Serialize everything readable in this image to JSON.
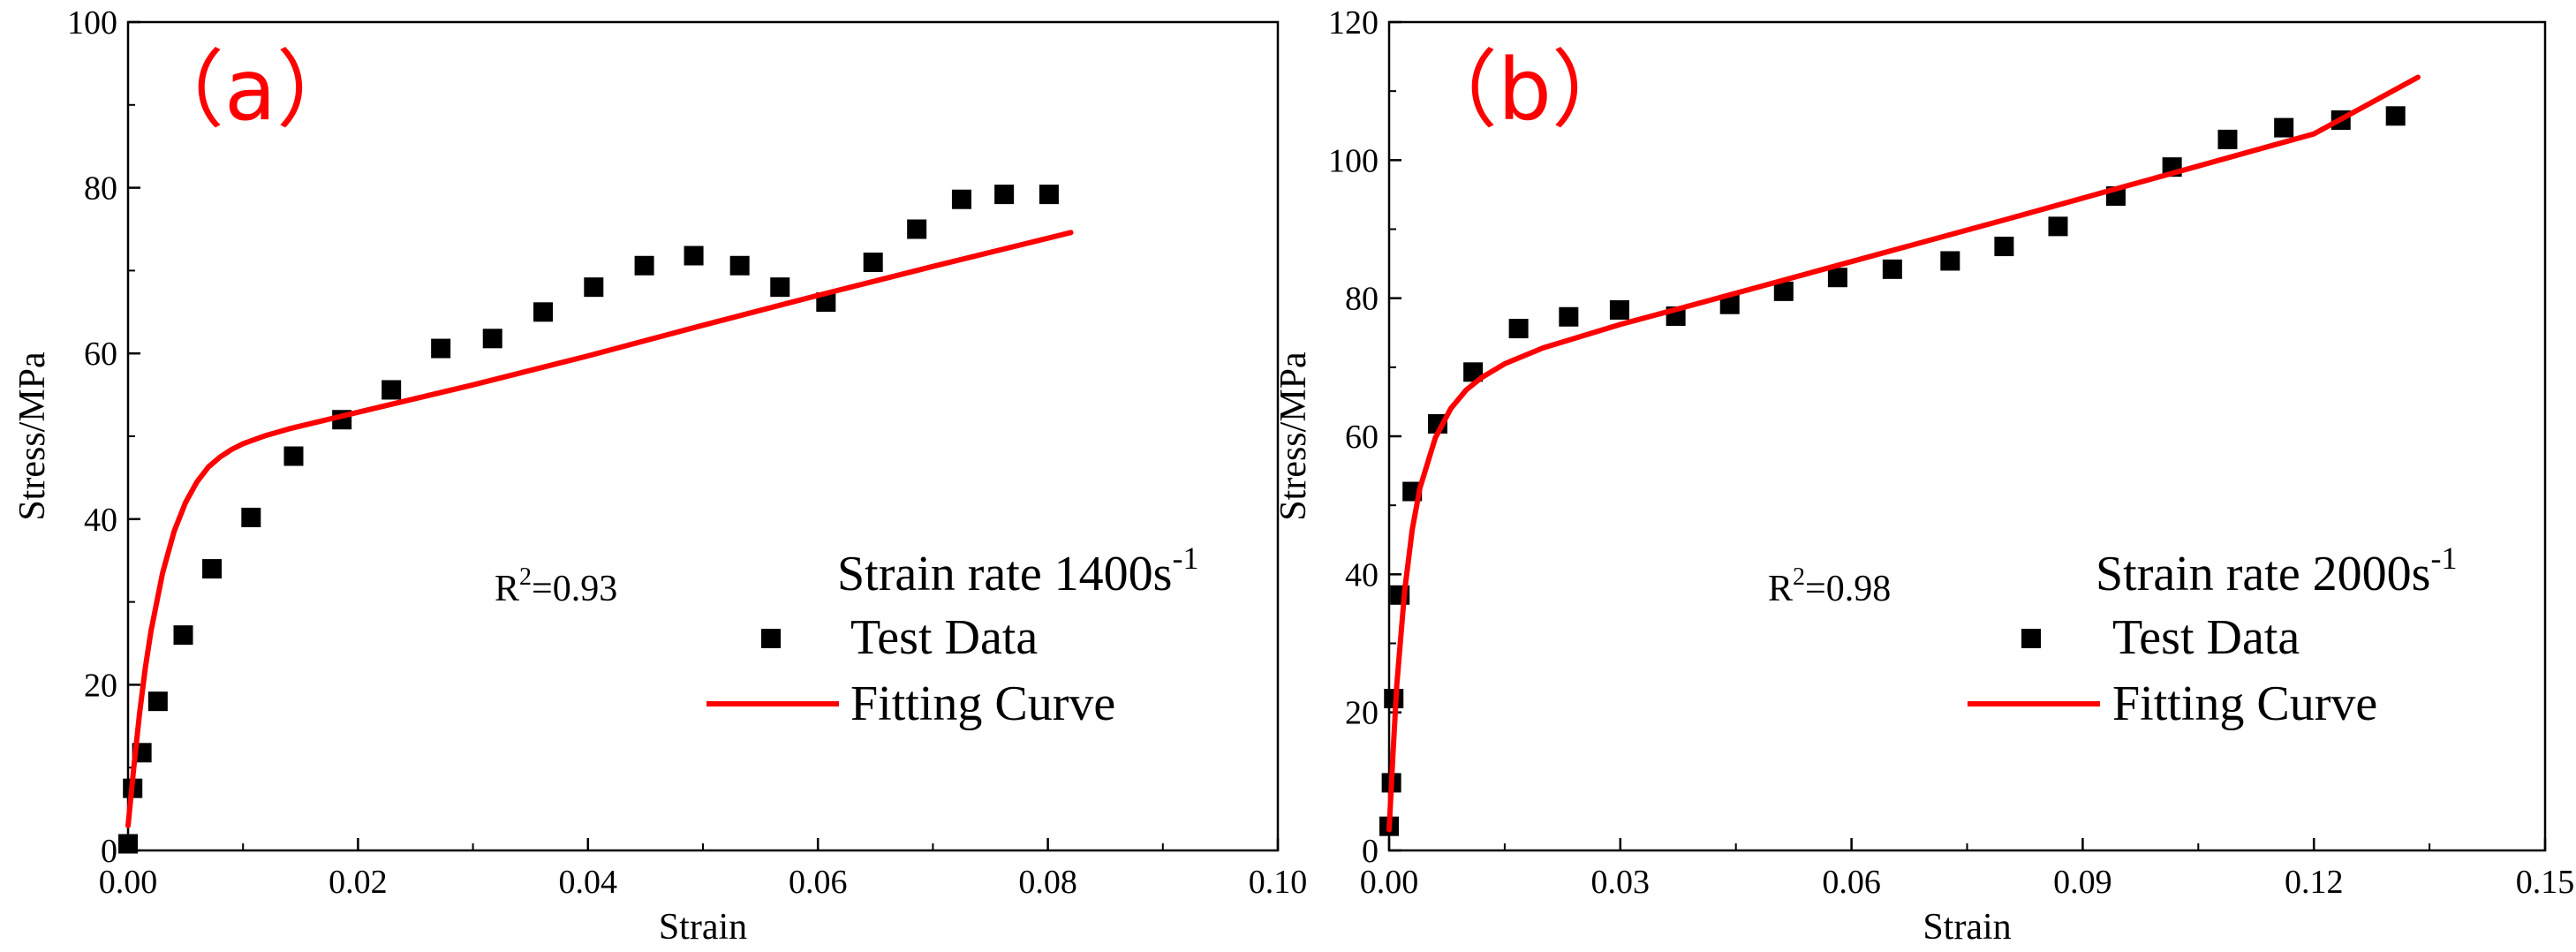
{
  "chart_data": [
    {
      "type": "scatter",
      "panel_label": "（a）",
      "xlabel": "Strain",
      "ylabel": "Stress/MPa",
      "xlim": [
        0,
        0.1
      ],
      "ylim": [
        0,
        100
      ],
      "xticks": [
        0,
        0.02,
        0.04,
        0.06,
        0.08,
        0.1
      ],
      "xtick_labels": [
        "0.00",
        "0.02",
        "0.04",
        "0.06",
        "0.08",
        "0.10"
      ],
      "yticks": [
        0,
        20,
        40,
        60,
        80,
        100
      ],
      "ytick_labels": [
        "0",
        "20",
        "40",
        "60",
        "80",
        "100"
      ],
      "annotation": {
        "base": "R",
        "sup": "2",
        "rest": "=0.93"
      },
      "legend": {
        "title_main": "Strain rate 1400s",
        "title_sup": "-1",
        "entries": [
          "Test Data",
          "Fitting Curve"
        ],
        "placement": "bottom-right"
      },
      "series": [
        {
          "name": "Test Data",
          "kind": "markers",
          "color": "#000000",
          "x": [
            0.0,
            0.0004,
            0.0012,
            0.0026,
            0.0048,
            0.0073,
            0.0107,
            0.0144,
            0.0186,
            0.0229,
            0.0272,
            0.0317,
            0.0361,
            0.0405,
            0.0449,
            0.0492,
            0.0532,
            0.0567,
            0.0607,
            0.0648,
            0.0686,
            0.0725,
            0.0762,
            0.0801
          ],
          "y": [
            0.8,
            7.5,
            11.8,
            18.0,
            26.0,
            34.0,
            40.2,
            47.6,
            52.0,
            55.6,
            60.6,
            61.8,
            65.0,
            68.0,
            70.6,
            71.8,
            70.6,
            68.0,
            66.2,
            71.0,
            75.0,
            78.6,
            79.2,
            79.2
          ]
        },
        {
          "name": "Fitting Curve",
          "kind": "line",
          "color": "#ff0000",
          "x": [
            0,
            0.0005,
            0.001,
            0.0015,
            0.002,
            0.003,
            0.004,
            0.005,
            0.006,
            0.007,
            0.008,
            0.009,
            0.01,
            0.012,
            0.014,
            0.017,
            0.02,
            0.03,
            0.04,
            0.05,
            0.06,
            0.07,
            0.082
          ],
          "y": [
            3.0,
            10.0,
            16.5,
            22.0,
            26.5,
            33.5,
            38.5,
            42.0,
            44.5,
            46.3,
            47.5,
            48.4,
            49.1,
            50.1,
            50.9,
            51.9,
            52.9,
            56.2,
            59.7,
            63.4,
            67.0,
            70.5,
            74.6
          ]
        }
      ]
    },
    {
      "type": "scatter",
      "panel_label": "（b）",
      "xlabel": "Strain",
      "ylabel": "Stress/MPa",
      "xlim": [
        0,
        0.15
      ],
      "ylim": [
        0,
        120
      ],
      "xticks": [
        0,
        0.03,
        0.06,
        0.09,
        0.12,
        0.15
      ],
      "xtick_labels": [
        "0.00",
        "0.03",
        "0.06",
        "0.09",
        "0.12",
        "0.15"
      ],
      "yticks": [
        0,
        20,
        40,
        60,
        80,
        100,
        120
      ],
      "ytick_labels": [
        "0",
        "20",
        "40",
        "60",
        "80",
        "100",
        "120"
      ],
      "annotation": {
        "base": "R",
        "sup": "2",
        "rest": "=0.98"
      },
      "legend": {
        "title_main": "Strain rate 2000s",
        "title_sup": "-1",
        "entries": [
          "Test Data",
          "Fitting Curve"
        ],
        "placement": "bottom-right"
      },
      "series": [
        {
          "name": "Test Data",
          "kind": "markers",
          "color": "#000000",
          "x": [
            0.0,
            0.0003,
            0.0006,
            0.0014,
            0.003,
            0.0063,
            0.0109,
            0.0168,
            0.0233,
            0.0299,
            0.0372,
            0.0442,
            0.0512,
            0.0582,
            0.0653,
            0.0728,
            0.0798,
            0.0868,
            0.0943,
            0.1016,
            0.1088,
            0.1161,
            0.1235,
            0.1306
          ],
          "y": [
            3.5,
            9.8,
            22.0,
            37.0,
            52.0,
            61.8,
            69.3,
            75.6,
            77.3,
            78.3,
            77.4,
            79.1,
            81.0,
            83.0,
            84.2,
            85.4,
            87.5,
            90.4,
            94.8,
            99.0,
            103.0,
            104.7,
            105.8,
            106.4
          ]
        },
        {
          "name": "Fitting Curve",
          "kind": "line",
          "color": "#ff0000",
          "x": [
            0,
            0.0005,
            0.001,
            0.002,
            0.003,
            0.004,
            0.006,
            0.008,
            0.01,
            0.012,
            0.015,
            0.02,
            0.03,
            0.04,
            0.06,
            0.08,
            0.1,
            0.12,
            0.1335
          ],
          "y": [
            3.0,
            14.0,
            24.0,
            37.5,
            46.5,
            52.5,
            59.8,
            64.0,
            66.7,
            68.5,
            70.5,
            72.8,
            76.2,
            79.2,
            85.3,
            91.4,
            97.6,
            103.8,
            112.0
          ]
        }
      ]
    }
  ]
}
